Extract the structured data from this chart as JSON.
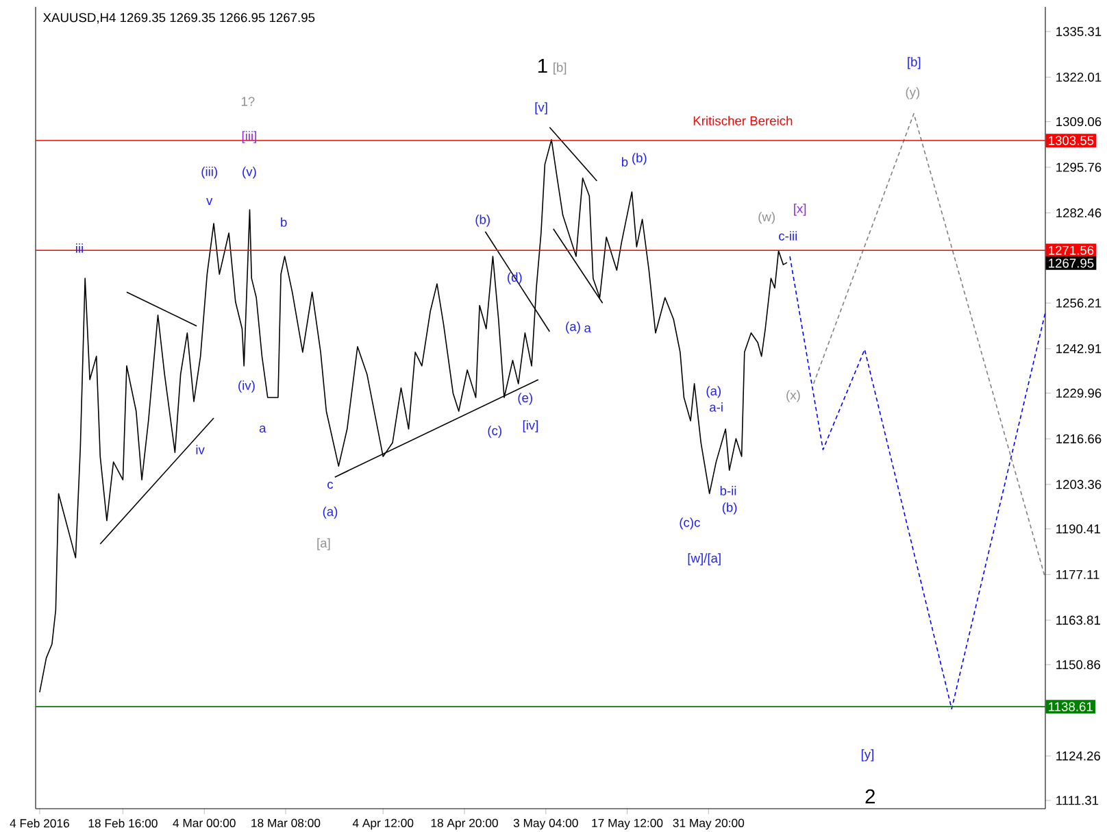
{
  "chart_data": {
    "type": "line",
    "title": "XAUUSD,H4  1269.35 1269.35 1266.95 1267.95",
    "marker": "none",
    "xlim": [
      "2016-02-03T07:00",
      "2016-07-30T04:00"
    ],
    "ylim": [
      1108.9,
      1342.5
    ],
    "xticks": [
      {
        "value": "2016-02-04T00:00",
        "label": "4 Feb 2016"
      },
      {
        "value": "2016-02-18T16:00",
        "label": "18 Feb 16:00"
      },
      {
        "value": "2016-03-04T00:00",
        "label": "4 Mar 00:00"
      },
      {
        "value": "2016-03-18T08:00",
        "label": "18 Mar 08:00"
      },
      {
        "value": "2016-04-04T12:00",
        "label": "4 Apr 12:00"
      },
      {
        "value": "2016-04-18T20:00",
        "label": "18 Apr 20:00"
      },
      {
        "value": "2016-05-03T04:00",
        "label": "3 May 04:00"
      },
      {
        "value": "2016-05-17T12:00",
        "label": "17 May 12:00"
      },
      {
        "value": "2016-05-31T20:00",
        "label": "31 May 20:00"
      }
    ],
    "yticks": [
      1335.31,
      1322.01,
      1309.06,
      1295.76,
      1282.46,
      1256.21,
      1242.91,
      1229.96,
      1216.66,
      1203.36,
      1190.41,
      1177.11,
      1163.81,
      1150.86,
      1124.26,
      1111.31
    ],
    "series": [
      {
        "color": "#000000",
        "line_style": "solid",
        "x": [
          "2016-02-04T00:00",
          "2016-02-05T04:00",
          "2016-02-06T04:00",
          "2016-02-06T20:00",
          "2016-02-07T08:00",
          "2016-02-10T08:00",
          "2016-02-11T04:00",
          "2016-02-12T00:00",
          "2016-02-12T20:00",
          "2016-02-14T00:00",
          "2016-02-14T16:00",
          "2016-02-15T20:00",
          "2016-02-17T00:00",
          "2016-02-18T16:00",
          "2016-02-19T08:00",
          "2016-02-21T00:00",
          "2016-02-22T00:00",
          "2016-02-23T04:00",
          "2016-02-24T20:00",
          "2016-02-26T00:00",
          "2016-02-27T20:00",
          "2016-02-28T20:00",
          "2016-03-01T00:00",
          "2016-03-02T04:00",
          "2016-03-03T08:00",
          "2016-03-04T12:00",
          "2016-03-05T16:00",
          "2016-03-06T16:00",
          "2016-03-08T08:00",
          "2016-03-09T12:00",
          "2016-03-10T16:00",
          "2016-03-11T00:00",
          "2016-03-12T00:00",
          "2016-03-12T08:00",
          "2016-03-13T04:00",
          "2016-03-14T04:00",
          "2016-03-15T04:00",
          "2016-03-17T00:00",
          "2016-03-17T12:00",
          "2016-03-18T04:00",
          "2016-03-19T12:00",
          "2016-03-21T08:00",
          "2016-03-23T00:00",
          "2016-03-24T12:00",
          "2016-03-25T12:00",
          "2016-03-27T16:00",
          "2016-03-29T04:00",
          "2016-03-31T00:00",
          "2016-04-01T16:00",
          "2016-04-04T12:00",
          "2016-04-06T04:00",
          "2016-04-07T16:00",
          "2016-04-09T00:00",
          "2016-04-10T04:00",
          "2016-04-11T08:00",
          "2016-04-12T20:00",
          "2016-04-14T00:00",
          "2016-04-15T04:00",
          "2016-04-16T20:00",
          "2016-04-17T20:00",
          "2016-04-19T08:00",
          "2016-04-20T20:00",
          "2016-04-21T12:00",
          "2016-04-22T16:00",
          "2016-04-23T20:00",
          "2016-04-24T20:00",
          "2016-04-25T20:00",
          "2016-04-27T08:00",
          "2016-04-28T08:00",
          "2016-04-29T12:00",
          "2016-04-30T16:00",
          "2016-05-01T12:00",
          "2016-05-02T08:00",
          "2016-05-03T00:00",
          "2016-05-04T04:00",
          "2016-05-05T04:00",
          "2016-05-06T04:00",
          "2016-05-08T12:00",
          "2016-05-09T16:00",
          "2016-05-10T20:00",
          "2016-05-11T12:00",
          "2016-05-12T16:00",
          "2016-05-13T20:00",
          "2016-05-15T16:00",
          "2016-05-16T12:00",
          "2016-05-18T08:00",
          "2016-05-19T04:00",
          "2016-05-20T04:00",
          "2016-05-21T08:00",
          "2016-05-22T12:00",
          "2016-05-24T04:00",
          "2016-05-25T16:00",
          "2016-05-26T20:00",
          "2016-05-27T12:00",
          "2016-05-28T16:00",
          "2016-05-29T08:00",
          "2016-05-30T12:00",
          "2016-06-01T00:00",
          "2016-06-02T04:00",
          "2016-06-03T20:00",
          "2016-06-04T12:00",
          "2016-06-05T16:00",
          "2016-06-06T16:00",
          "2016-06-07T04:00",
          "2016-06-08T08:00",
          "2016-06-09T12:00",
          "2016-06-10T04:00",
          "2016-06-10T20:00",
          "2016-06-11T20:00",
          "2016-06-12T12:00",
          "2016-06-13T04:00",
          "2016-06-14T00:00",
          "2016-06-14T16:00"
        ],
        "values": [
          1142.8,
          1152.8,
          1156.8,
          1166.8,
          1200.7,
          1182.0,
          1213.9,
          1263.4,
          1233.9,
          1240.7,
          1211.5,
          1192.8,
          1209.9,
          1204.7,
          1237.9,
          1224.7,
          1204.7,
          1221.9,
          1252.7,
          1235.5,
          1212.7,
          1235.5,
          1247.5,
          1227.5,
          1240.7,
          1264.6,
          1279.4,
          1264.6,
          1276.6,
          1256.6,
          1248.7,
          1237.9,
          1283.4,
          1263.4,
          1257.8,
          1240.7,
          1228.7,
          1228.7,
          1264.6,
          1269.8,
          1259.4,
          1241.9,
          1259.4,
          1241.9,
          1224.7,
          1208.7,
          1219.5,
          1243.5,
          1235.5,
          1211.5,
          1215.5,
          1231.5,
          1219.5,
          1241.9,
          1237.9,
          1253.9,
          1261.8,
          1249.9,
          1229.9,
          1224.7,
          1236.7,
          1228.7,
          1255.5,
          1248.7,
          1269.8,
          1251.5,
          1228.7,
          1239.5,
          1232.7,
          1247.5,
          1237.9,
          1260.6,
          1276.6,
          1296.6,
          1303.8,
          1292.6,
          1281.8,
          1269.8,
          1292.6,
          1287.4,
          1263.4,
          1257.8,
          1275.4,
          1265.8,
          1273.8,
          1288.6,
          1272.6,
          1280.6,
          1265.8,
          1247.5,
          1257.8,
          1251.5,
          1241.9,
          1228.7,
          1221.9,
          1232.7,
          1215.5,
          1200.7,
          1209.9,
          1219.5,
          1207.5,
          1216.7,
          1211.5,
          1241.9,
          1247.5,
          1244.7,
          1240.7,
          1248.7,
          1263.4,
          1260.6,
          1271.4,
          1267.4,
          1268.0
        ]
      },
      {
        "color": "#000000",
        "line_style": "solid",
        "x": [
          "2016-02-14T16:00",
          "2016-03-05T16:00"
        ],
        "values": [
          1186.0,
          1222.7
        ]
      },
      {
        "color": "#000000",
        "line_style": "solid",
        "x": [
          "2016-02-19T08:00",
          "2016-03-02T16:00"
        ],
        "values": [
          1259.4,
          1249.5
        ]
      },
      {
        "color": "#000000",
        "line_style": "solid",
        "x": [
          "2016-03-27T00:00",
          "2016-05-01T20:00"
        ],
        "values": [
          1205.5,
          1233.9
        ]
      },
      {
        "color": "#000000",
        "line_style": "solid",
        "x": [
          "2016-04-22T12:00",
          "2016-05-03T20:00"
        ],
        "values": [
          1277.0,
          1247.9
        ]
      },
      {
        "color": "#000000",
        "line_style": "solid",
        "x": [
          "2016-05-03T20:00",
          "2016-05-12T04:00"
        ],
        "values": [
          1307.4,
          1291.8
        ]
      },
      {
        "color": "#000000",
        "line_style": "solid",
        "x": [
          "2016-05-04T12:00",
          "2016-05-13T04:00"
        ],
        "values": [
          1277.8,
          1256.2
        ]
      },
      {
        "color": "#0000ff",
        "line_style": "dashed",
        "x": [
          "2016-06-15T04:00",
          "2016-06-21T00:00",
          "2016-06-28T08:00",
          "2016-07-13T16:00",
          "2016-07-30T04:00"
        ],
        "values": [
          1269.8,
          1213.5,
          1242.7,
          1138.0,
          1253.5
        ]
      },
      {
        "color": "#808080",
        "line_style": "dashed",
        "x": [
          "2016-06-19T08:00",
          "2016-07-07T00:00",
          "2016-07-30T04:00"
        ],
        "values": [
          1232.7,
          1311.4,
          1176.0
        ]
      }
    ],
    "ref_lines": [
      {
        "axis": "y",
        "value": 1303.55,
        "label": "1303.55",
        "color": "#ff0000"
      },
      {
        "axis": "y",
        "value": 1271.56,
        "label": "1271.56",
        "color": "#ff0000"
      },
      {
        "axis": "y",
        "value": 1138.61,
        "label": "1138.61",
        "color": "#008000"
      }
    ],
    "annotations": [
      "iii",
      "v",
      "(iii)",
      "(v)",
      "[iii]",
      "1?",
      "b",
      "(iv)",
      "a",
      "iv",
      "c",
      "(a)",
      "[a]",
      "(b)",
      "(d)",
      "(e)",
      "(c)",
      "[iv]",
      "[v]",
      "1",
      "[b]",
      "b",
      "(b)",
      "(a)",
      "a",
      "(a)",
      "a-i",
      "b-ii",
      "(b)",
      "(c)c",
      "[w]/[a]",
      "(w)",
      "c-iii",
      "[x]",
      "(x)",
      "[b]",
      "(y)",
      "[y]",
      "2",
      "Kritischer Bereich",
      "1267.95"
    ]
  }
}
